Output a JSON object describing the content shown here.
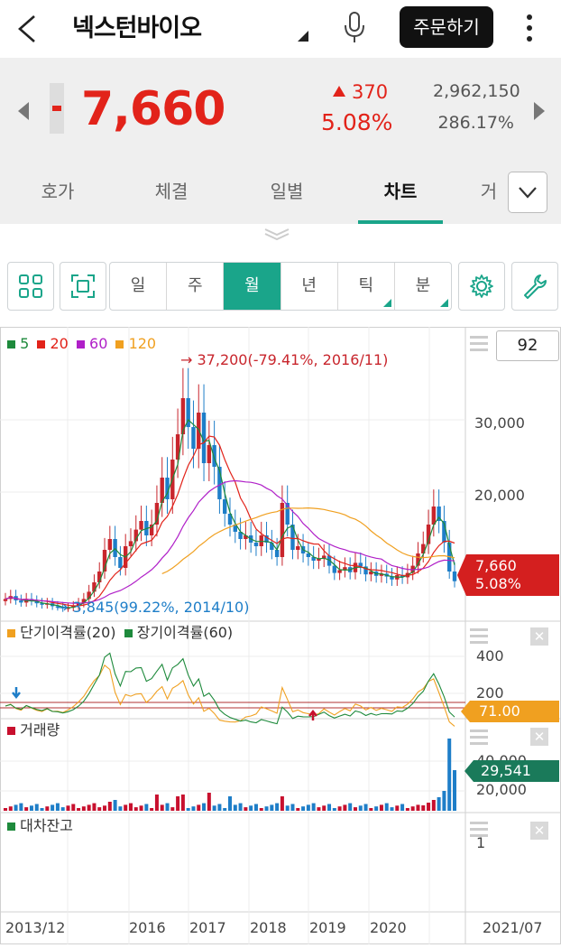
{
  "header": {
    "title": "넥스턴바이오",
    "order_label": "주문하기"
  },
  "quote": {
    "price": "7,660",
    "change": "370",
    "change_pct": "5.08%",
    "volume": "2,962,150",
    "volume_pct": "286.17%"
  },
  "tabs": [
    {
      "label": "호가"
    },
    {
      "label": "체결"
    },
    {
      "label": "일별"
    },
    {
      "label": "차트"
    },
    {
      "label": "거"
    }
  ],
  "toolbar": {
    "periods": [
      {
        "label": "일"
      },
      {
        "label": "주"
      },
      {
        "label": "월"
      },
      {
        "label": "년"
      },
      {
        "label": "틱"
      },
      {
        "label": "분"
      }
    ],
    "selected_period": "월",
    "count_value": "92"
  },
  "price_panel": {
    "legend": [
      {
        "label": "5",
        "color": "#1e8a3c"
      },
      {
        "label": "20",
        "color": "#e2231a"
      },
      {
        "label": "60",
        "color": "#b020c8"
      },
      {
        "label": "120",
        "color": "#f0a020"
      }
    ],
    "high_note": "37,200(-79.41%, 2016/11)",
    "low_note": "3,845(99.22%, 2014/10)",
    "y_ticks": [
      "30,000",
      "20,000"
    ],
    "last_price": "7,660",
    "last_pct": "5.08%"
  },
  "disparity_panel": {
    "legend": [
      {
        "label": "단기이격률(20)",
        "color": "#f0a020"
      },
      {
        "label": "장기이격률(60)",
        "color": "#1e8a3c"
      }
    ],
    "y_ticks": [
      "400",
      "200"
    ],
    "last_value": "71.00"
  },
  "volume_panel": {
    "legend": [
      {
        "label": "거래량",
        "color": "#c8102e"
      }
    ],
    "y_ticks": [
      "40,000",
      "20,000"
    ],
    "last_value": "29,541"
  },
  "loan_panel": {
    "legend": [
      {
        "label": "대차잔고",
        "color": "#1e8a3c"
      }
    ],
    "y_ticks": [
      "1"
    ]
  },
  "x_axis": [
    "2013/12",
    "2016",
    "2017",
    "2018",
    "2019",
    "2020",
    "2021/07"
  ],
  "colors": {
    "accent": "#1aa58a",
    "up": "#e2231a",
    "down": "#1e7ec8"
  },
  "icons": {
    "back": "chevron-left-icon",
    "mic": "microphone-icon",
    "more": "kebab-menu-icon",
    "grid": "grid-icon",
    "fullscreen": "fullscreen-icon",
    "settings": "gear-icon",
    "tools": "wrench-icon"
  }
}
